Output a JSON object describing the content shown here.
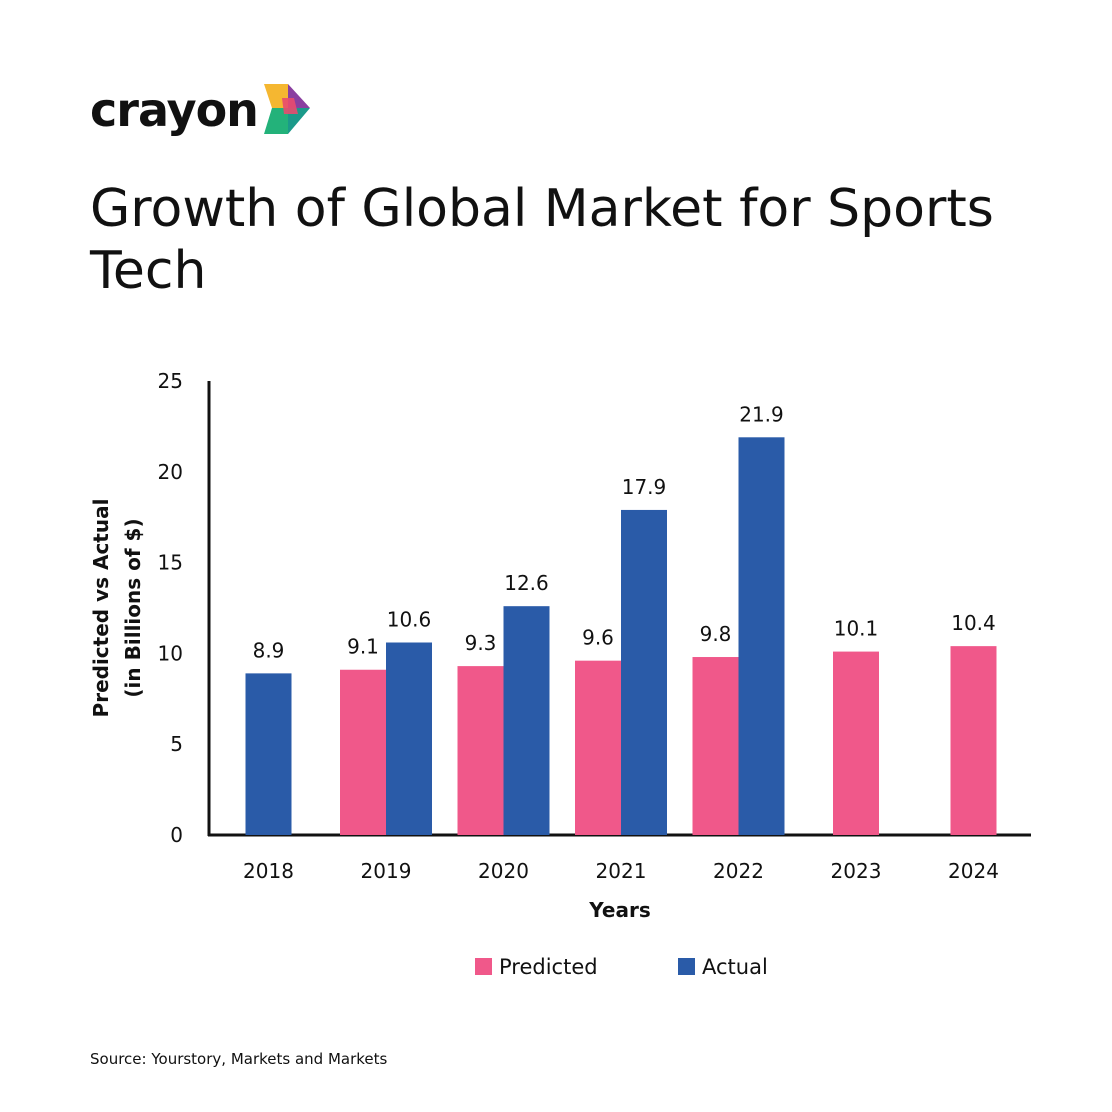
{
  "logo": {
    "text": "crayon",
    "name": "crayon-logo"
  },
  "title": "Growth of Global Market for Sports Tech",
  "source": "Source: Yourstory, Markets and Markets",
  "colors": {
    "predicted": "#f0588a",
    "actual": "#2a5ba8",
    "axis": "#111111",
    "text": "#111111"
  },
  "chart_data": {
    "type": "bar",
    "title": "Growth of Global Market for Sports Tech",
    "xlabel": "Years",
    "ylabel": "Predicted vs Actual",
    "ylabel2": "(in Billions of $)",
    "categories": [
      "2018",
      "2019",
      "2020",
      "2021",
      "2022",
      "2023",
      "2024"
    ],
    "series": [
      {
        "name": "Predicted",
        "color": "#f0588a",
        "values": [
          null,
          9.1,
          9.3,
          9.6,
          9.8,
          10.1,
          10.4
        ]
      },
      {
        "name": "Actual",
        "color": "#2a5ba8",
        "values": [
          8.9,
          10.6,
          12.6,
          17.9,
          21.9,
          null,
          null
        ]
      }
    ],
    "yticks": [
      0,
      5,
      10,
      15,
      20,
      25
    ],
    "ylim": [
      0,
      25
    ],
    "grid": false,
    "legend": "bottom"
  }
}
